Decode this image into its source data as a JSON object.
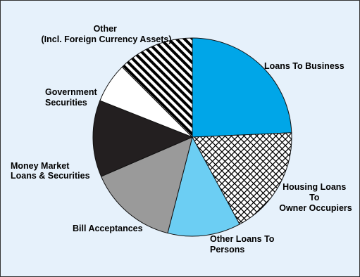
{
  "chart_data": {
    "type": "pie",
    "title": "",
    "start_angle_deg": 0,
    "direction": "clockwise",
    "slices": [
      {
        "label": [
          "Loans To Business"
        ],
        "value": 24.3,
        "color": "#00a6e8",
        "pattern": "solid"
      },
      {
        "label": [
          "Housing Loans",
          "To",
          "Owner Occupiers"
        ],
        "value": 17.8,
        "color": "#ffffff",
        "pattern": "crosshatch"
      },
      {
        "label": [
          "Other Loans To",
          "Persons"
        ],
        "value": 11.9,
        "color": "#6ccef3",
        "pattern": "solid"
      },
      {
        "label": [
          "Bill Acceptances"
        ],
        "value": 14.5,
        "color": "#9a9a9a",
        "pattern": "solid"
      },
      {
        "label": [
          "Money Market",
          "Loans & Securities"
        ],
        "value": 12.5,
        "color": "#231f20",
        "pattern": "solid"
      },
      {
        "label": [
          "Government",
          "Securities"
        ],
        "value": 6.5,
        "color": "#ffffff",
        "pattern": "solid"
      },
      {
        "label": [
          "Other",
          "(Incl. Foreign Currency Assets)"
        ],
        "value": 12.5,
        "color": "#ffffff",
        "pattern": "diagonal-stripes"
      }
    ]
  }
}
